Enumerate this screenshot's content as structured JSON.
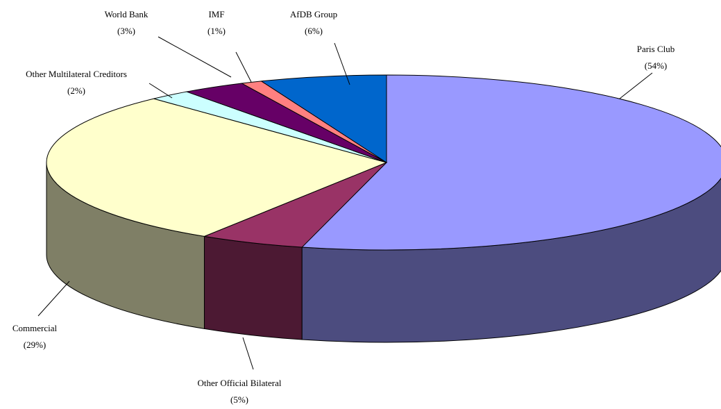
{
  "chart_data": {
    "type": "pie3d",
    "categories": [
      "Paris Club",
      "Other Official Bilateral",
      "Commercial",
      "Other Multilateral Creditors",
      "World Bank",
      "IMF",
      "AfDB Group"
    ],
    "values": [
      54,
      5,
      29,
      2,
      3,
      1,
      6
    ],
    "value_labels": [
      "(54%)",
      "(5%)",
      "(29%)",
      "(2%)",
      "(3%)",
      "(1%)",
      "(6%)"
    ],
    "colors": [
      "#9999ff",
      "#993366",
      "#ffffcc",
      "#ccffff",
      "#660066",
      "#ff8080",
      "#0066cc"
    ]
  }
}
